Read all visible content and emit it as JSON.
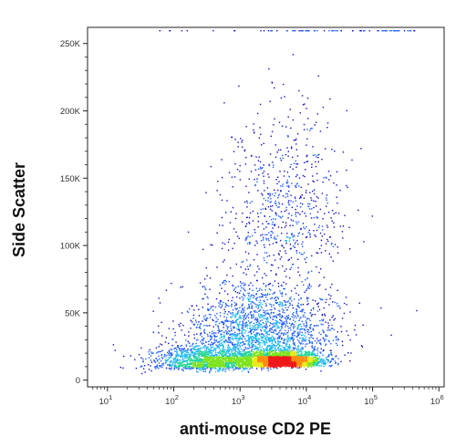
{
  "chart_data": {
    "type": "scatter",
    "style": "flow-cytometry density dot plot",
    "xlabel": "anti-mouse CD2 PE",
    "ylabel": "Side Scatter",
    "x_scale": "log",
    "xlim": [
      5,
      1200000
    ],
    "ylim": [
      -5000,
      262000
    ],
    "x_ticks": [
      {
        "value": 10,
        "base": "10",
        "exp": "1"
      },
      {
        "value": 100,
        "base": "10",
        "exp": "2"
      },
      {
        "value": 1000,
        "base": "10",
        "exp": "3"
      },
      {
        "value": 10000,
        "base": "10",
        "exp": "4"
      },
      {
        "value": 100000,
        "base": "10",
        "exp": "5"
      },
      {
        "value": 1000000,
        "base": "10",
        "exp": "6"
      }
    ],
    "y_ticks": [
      {
        "value": 0,
        "label": "0"
      },
      {
        "value": 50000,
        "label": "50K"
      },
      {
        "value": 100000,
        "label": "100K"
      },
      {
        "value": 150000,
        "label": "150K"
      },
      {
        "value": 200000,
        "label": "200K"
      },
      {
        "value": 250000,
        "label": "250K"
      }
    ],
    "populations": [
      {
        "name": "main",
        "x_log_center": 3.6,
        "x_log_sd": 0.32,
        "y_center": 13000,
        "y_sd": 4500,
        "weight": 0.42
      },
      {
        "name": "low",
        "x_log_center": 2.5,
        "x_log_sd": 0.42,
        "y_center": 12000,
        "y_sd": 7000,
        "weight": 0.22
      },
      {
        "name": "spread",
        "x_log_center": 3.3,
        "x_log_sd": 0.55,
        "y_center": 32000,
        "y_sd": 22000,
        "weight": 0.26
      },
      {
        "name": "high",
        "x_log_center": 3.7,
        "x_log_sd": 0.45,
        "y_center": 110000,
        "y_sd": 45000,
        "weight": 0.1
      }
    ],
    "saturated_y": 260000,
    "density_colors": [
      "#1010c8",
      "#1f5fff",
      "#1fb8f0",
      "#22d49a",
      "#7be31a",
      "#e8ea18",
      "#ff8c10",
      "#ee1a1a"
    ]
  }
}
